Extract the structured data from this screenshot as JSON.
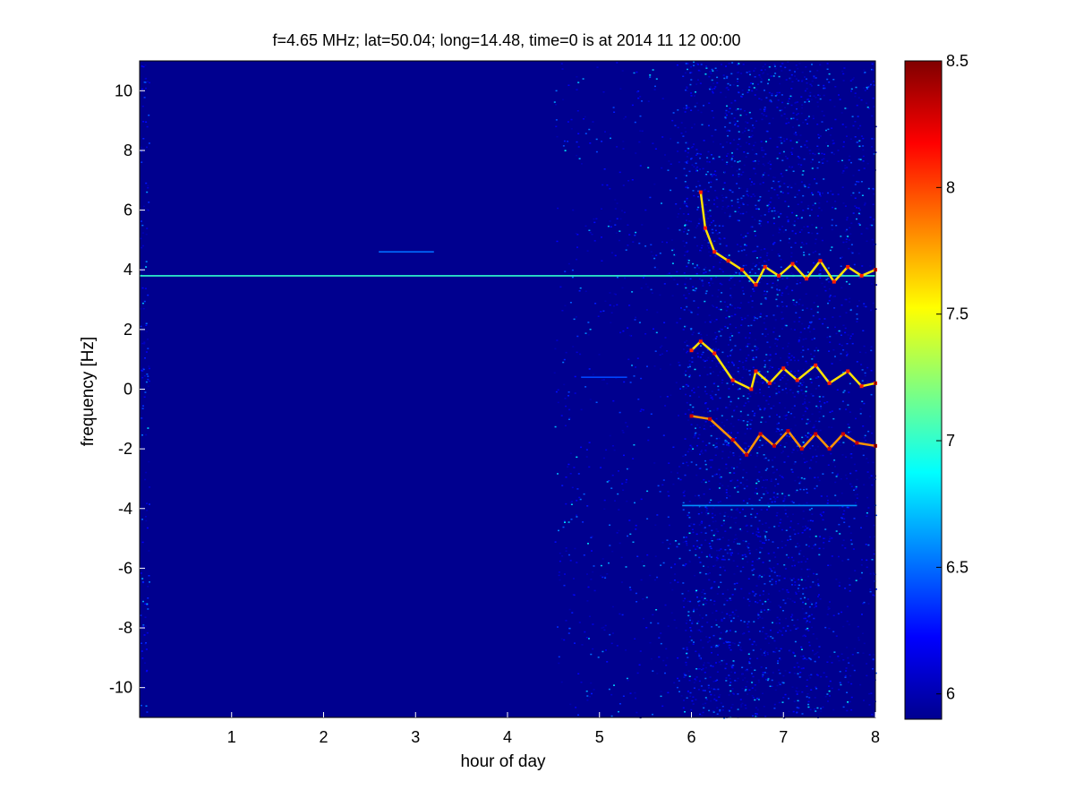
{
  "figure": {
    "title": "f=4.65 MHz;  lat=50.04; long=14.48, time=0 is at 2014 11 12 00:00"
  },
  "chart_data": {
    "type": "heatmap",
    "title": "f=4.65 MHz;  lat=50.04; long=14.48, time=0 is at 2014 11 12 00:00",
    "xlabel": "hour of day",
    "ylabel": "frequency [Hz]",
    "xlim": [
      0,
      8
    ],
    "ylim": [
      -11,
      11
    ],
    "x_ticks": [
      1,
      2,
      3,
      4,
      5,
      6,
      7,
      8
    ],
    "y_ticks": [
      -10,
      -8,
      -6,
      -4,
      -2,
      0,
      2,
      4,
      6,
      8,
      10
    ],
    "colormap": "jet",
    "colorbar": {
      "range": [
        5.9,
        8.5
      ],
      "ticks": [
        6,
        6.5,
        7,
        7.5,
        8,
        8.5
      ],
      "position": "right"
    },
    "background_level": 5.95,
    "features": [
      {
        "name": "carrier line",
        "x_range": [
          0,
          8
        ],
        "y": 3.8,
        "level": 7.0
      },
      {
        "name": "mirror line",
        "x_range": [
          5.9,
          7.8
        ],
        "y": -3.9,
        "level": 6.6
      },
      {
        "name": "small patch",
        "x_range": [
          2.6,
          3.2
        ],
        "y": 4.6,
        "level": 6.5
      },
      {
        "name": "small dash",
        "x_range": [
          4.8,
          5.3
        ],
        "y": 0.4,
        "level": 6.4
      },
      {
        "name": "upper trace",
        "points": [
          [
            6.1,
            6.6
          ],
          [
            6.15,
            5.4
          ],
          [
            6.25,
            4.6
          ],
          [
            6.4,
            4.3
          ],
          [
            6.55,
            4.0
          ],
          [
            6.7,
            3.5
          ],
          [
            6.8,
            4.1
          ],
          [
            6.95,
            3.8
          ],
          [
            7.1,
            4.2
          ],
          [
            7.25,
            3.7
          ],
          [
            7.4,
            4.3
          ],
          [
            7.55,
            3.6
          ],
          [
            7.7,
            4.1
          ],
          [
            7.85,
            3.8
          ],
          [
            8.0,
            4.0
          ]
        ],
        "level": 7.6
      },
      {
        "name": "middle trace",
        "points": [
          [
            6.0,
            1.3
          ],
          [
            6.1,
            1.6
          ],
          [
            6.25,
            1.2
          ],
          [
            6.45,
            0.3
          ],
          [
            6.65,
            0.0
          ],
          [
            6.7,
            0.6
          ],
          [
            6.85,
            0.2
          ],
          [
            7.0,
            0.7
          ],
          [
            7.15,
            0.3
          ],
          [
            7.35,
            0.8
          ],
          [
            7.5,
            0.2
          ],
          [
            7.7,
            0.6
          ],
          [
            7.85,
            0.1
          ],
          [
            8.0,
            0.2
          ]
        ],
        "level": 7.6
      },
      {
        "name": "lower trace",
        "points": [
          [
            6.0,
            -0.9
          ],
          [
            6.2,
            -1.0
          ],
          [
            6.45,
            -1.7
          ],
          [
            6.6,
            -2.2
          ],
          [
            6.75,
            -1.5
          ],
          [
            6.9,
            -1.9
          ],
          [
            7.05,
            -1.4
          ],
          [
            7.2,
            -2.0
          ],
          [
            7.35,
            -1.5
          ],
          [
            7.5,
            -2.0
          ],
          [
            7.65,
            -1.5
          ],
          [
            7.8,
            -1.8
          ],
          [
            8.0,
            -1.9
          ]
        ],
        "level": 7.8
      }
    ],
    "noise_bands": [
      {
        "x_range": [
          0,
          0.1
        ],
        "density": 0.25
      },
      {
        "x_range": [
          4.5,
          5.9
        ],
        "density": 0.08
      },
      {
        "x_range": [
          5.9,
          7.4
        ],
        "density": 0.35
      },
      {
        "x_range": [
          7.4,
          8.0
        ],
        "density": 0.18
      }
    ]
  }
}
